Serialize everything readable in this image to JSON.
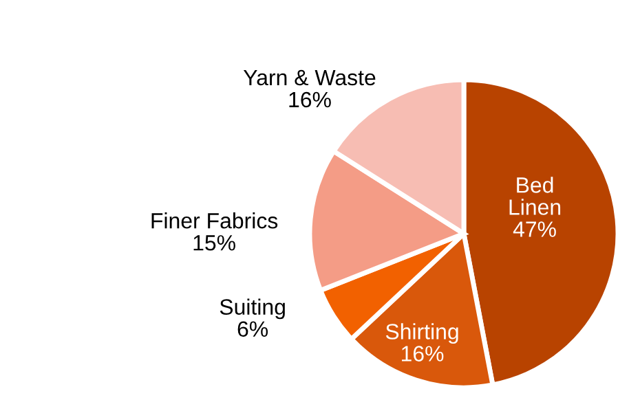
{
  "chart_data": {
    "type": "pie",
    "categories": [
      "Bed Linen",
      "Shirting",
      "Suiting",
      "Finer Fabrics",
      "Yarn & Waste"
    ],
    "values": [
      47,
      16,
      6,
      15,
      16
    ],
    "colors": [
      "#b84300",
      "#d9580b",
      "#f26100",
      "#f49c86",
      "#f7bdb3"
    ],
    "value_labels": [
      "47%",
      "16%",
      "6%",
      "15%",
      "16%"
    ]
  }
}
